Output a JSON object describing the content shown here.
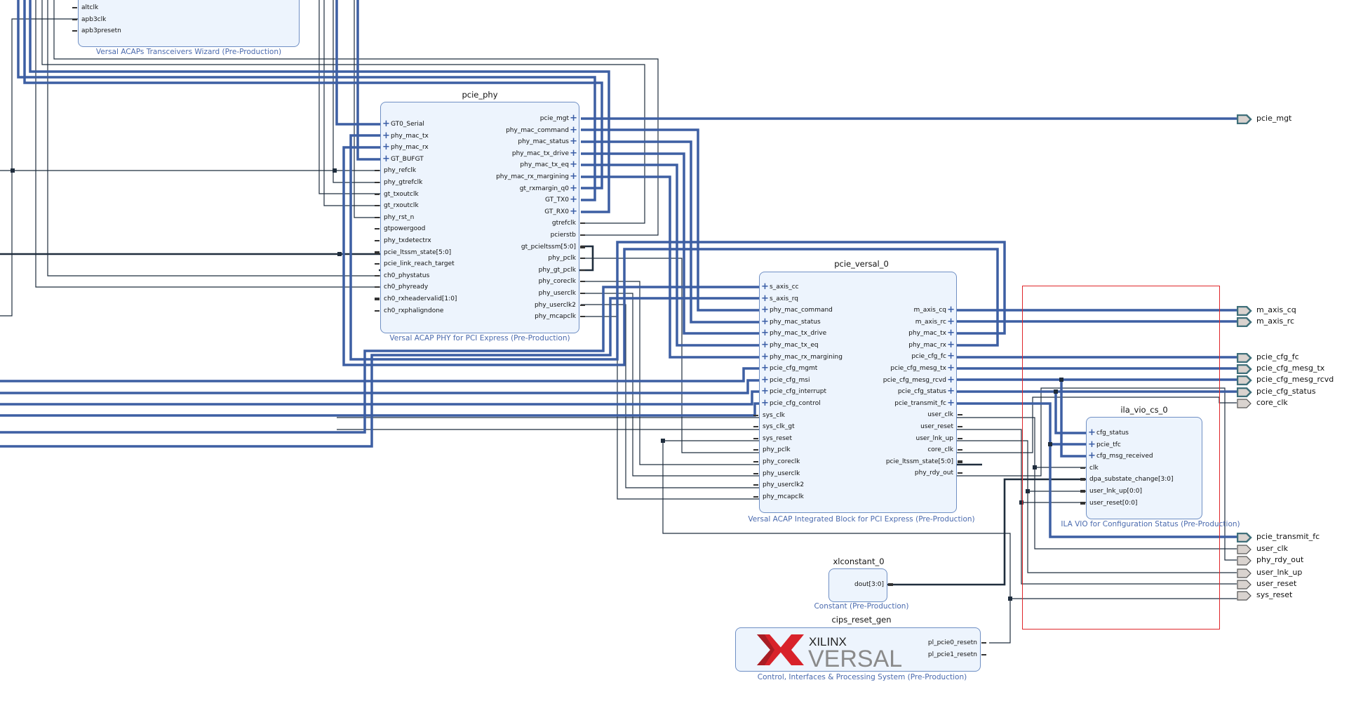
{
  "blocks": {
    "wizard": {
      "caption": "Versal ACAPs Transceivers Wizard (Pre-Production)",
      "left_ports": [
        {
          "name": "altclk",
          "kind": "pin"
        },
        {
          "name": "apb3clk",
          "kind": "pin"
        },
        {
          "name": "apb3presetn",
          "kind": "pin"
        }
      ]
    },
    "pcie_phy": {
      "title": "pcie_phy",
      "caption": "Versal ACAP PHY for PCI Express (Pre-Production)",
      "left_ports": [
        {
          "name": "GT0_Serial",
          "kind": "bus"
        },
        {
          "name": "phy_mac_tx",
          "kind": "bus"
        },
        {
          "name": "phy_mac_rx",
          "kind": "bus"
        },
        {
          "name": "GT_BUFGT",
          "kind": "bus"
        },
        {
          "name": "phy_refclk",
          "kind": "pin"
        },
        {
          "name": "phy_gtrefclk",
          "kind": "pin"
        },
        {
          "name": "gt_txoutclk",
          "kind": "pin"
        },
        {
          "name": "gt_rxoutclk",
          "kind": "pin"
        },
        {
          "name": "phy_rst_n",
          "kind": "pin"
        },
        {
          "name": "gtpowergood",
          "kind": "pin"
        },
        {
          "name": "phy_txdetectrx",
          "kind": "pin"
        },
        {
          "name": "pcie_ltssm_state[5:0]",
          "kind": "vec"
        },
        {
          "name": "pcie_link_reach_target",
          "kind": "pin"
        },
        {
          "name": "ch0_phystatus",
          "kind": "pin"
        },
        {
          "name": "ch0_phyready",
          "kind": "pin"
        },
        {
          "name": "ch0_rxheadervalid[1:0]",
          "kind": "vec"
        },
        {
          "name": "ch0_rxphaligndone",
          "kind": "pin"
        }
      ],
      "right_ports": [
        {
          "name": "pcie_mgt",
          "kind": "bus"
        },
        {
          "name": "phy_mac_command",
          "kind": "bus"
        },
        {
          "name": "phy_mac_status",
          "kind": "bus"
        },
        {
          "name": "phy_mac_tx_drive",
          "kind": "bus"
        },
        {
          "name": "phy_mac_tx_eq",
          "kind": "bus"
        },
        {
          "name": "phy_mac_rx_margining",
          "kind": "bus"
        },
        {
          "name": "gt_rxmargin_q0",
          "kind": "bus"
        },
        {
          "name": "GT_TX0",
          "kind": "bus"
        },
        {
          "name": "GT_RX0",
          "kind": "bus"
        },
        {
          "name": "gtrefclk",
          "kind": "pin"
        },
        {
          "name": "pcierstb",
          "kind": "pin"
        },
        {
          "name": "gt_pcieltssm[5:0]",
          "kind": "vec"
        },
        {
          "name": "phy_pclk",
          "kind": "pin"
        },
        {
          "name": "phy_gt_pclk",
          "kind": "pin"
        },
        {
          "name": "phy_coreclk",
          "kind": "pin"
        },
        {
          "name": "phy_userclk",
          "kind": "pin"
        },
        {
          "name": "phy_userclk2",
          "kind": "pin"
        },
        {
          "name": "phy_mcapclk",
          "kind": "pin"
        }
      ]
    },
    "pcie_versal_0": {
      "title": "pcie_versal_0",
      "caption": "Versal ACAP Integrated Block for PCI Express (Pre-Production)",
      "left_ports": [
        {
          "name": "s_axis_cc",
          "kind": "bus"
        },
        {
          "name": "s_axis_rq",
          "kind": "bus"
        },
        {
          "name": "phy_mac_command",
          "kind": "bus"
        },
        {
          "name": "phy_mac_status",
          "kind": "bus"
        },
        {
          "name": "phy_mac_tx_drive",
          "kind": "bus"
        },
        {
          "name": "phy_mac_tx_eq",
          "kind": "bus"
        },
        {
          "name": "phy_mac_rx_margining",
          "kind": "bus"
        },
        {
          "name": "pcie_cfg_mgmt",
          "kind": "bus"
        },
        {
          "name": "pcie_cfg_msi",
          "kind": "bus"
        },
        {
          "name": "pcie_cfg_interrupt",
          "kind": "bus"
        },
        {
          "name": "pcie_cfg_control",
          "kind": "bus"
        },
        {
          "name": "sys_clk",
          "kind": "pin"
        },
        {
          "name": "sys_clk_gt",
          "kind": "pin"
        },
        {
          "name": "sys_reset",
          "kind": "pin"
        },
        {
          "name": "phy_pclk",
          "kind": "pin"
        },
        {
          "name": "phy_coreclk",
          "kind": "pin"
        },
        {
          "name": "phy_userclk",
          "kind": "pin"
        },
        {
          "name": "phy_userclk2",
          "kind": "pin"
        },
        {
          "name": "phy_mcapclk",
          "kind": "pin"
        }
      ],
      "right_ports": [
        {
          "name": "m_axis_cq",
          "kind": "bus"
        },
        {
          "name": "m_axis_rc",
          "kind": "bus"
        },
        {
          "name": "phy_mac_tx",
          "kind": "bus"
        },
        {
          "name": "phy_mac_rx",
          "kind": "bus"
        },
        {
          "name": "pcie_cfg_fc",
          "kind": "bus"
        },
        {
          "name": "pcie_cfg_mesg_tx",
          "kind": "bus"
        },
        {
          "name": "pcie_cfg_mesg_rcvd",
          "kind": "bus"
        },
        {
          "name": "pcie_cfg_status",
          "kind": "bus"
        },
        {
          "name": "pcie_transmit_fc",
          "kind": "bus"
        },
        {
          "name": "user_clk",
          "kind": "pin"
        },
        {
          "name": "user_reset",
          "kind": "pin"
        },
        {
          "name": "user_lnk_up",
          "kind": "pin"
        },
        {
          "name": "core_clk",
          "kind": "pin"
        },
        {
          "name": "pcie_ltssm_state[5:0]",
          "kind": "vec"
        },
        {
          "name": "phy_rdy_out",
          "kind": "pin"
        }
      ]
    },
    "ila_vio_cs_0": {
      "title": "ila_vio_cs_0",
      "caption": "ILA VIO for Configuration Status (Pre-Production)",
      "left_ports": [
        {
          "name": "cfg_status",
          "kind": "bus"
        },
        {
          "name": "pcie_tfc",
          "kind": "bus"
        },
        {
          "name": "cfg_msg_received",
          "kind": "bus"
        },
        {
          "name": "clk",
          "kind": "pin"
        },
        {
          "name": "dpa_substate_change[3:0]",
          "kind": "vec"
        },
        {
          "name": "user_lnk_up[0:0]",
          "kind": "vec"
        },
        {
          "name": "user_reset[0:0]",
          "kind": "vec"
        }
      ]
    },
    "xlconstant_0": {
      "title": "xlconstant_0",
      "caption": "Constant (Pre-Production)",
      "right_ports": [
        {
          "name": "dout[3:0]",
          "kind": "vec"
        }
      ]
    },
    "cips_reset_gen": {
      "title": "cips_reset_gen",
      "caption": "Control, Interfaces & Processing System (Pre-Production)",
      "logo_brand": "XILINX",
      "logo_product": "VERSAL",
      "right_ports": [
        {
          "name": "pl_pcie0_resetn",
          "kind": "pin"
        },
        {
          "name": "pl_pcie1_resetn",
          "kind": "pin"
        }
      ]
    }
  },
  "external_ports": [
    {
      "name": "pcie_mgt",
      "kind": "bus"
    },
    {
      "name": "m_axis_cq",
      "kind": "bus"
    },
    {
      "name": "m_axis_rc",
      "kind": "bus"
    },
    {
      "name": "pcie_cfg_fc",
      "kind": "bus"
    },
    {
      "name": "pcie_cfg_mesg_tx",
      "kind": "bus"
    },
    {
      "name": "pcie_cfg_mesg_rcvd",
      "kind": "bus"
    },
    {
      "name": "pcie_cfg_status",
      "kind": "bus"
    },
    {
      "name": "core_clk",
      "kind": "pin"
    },
    {
      "name": "pcie_transmit_fc",
      "kind": "bus"
    },
    {
      "name": "user_clk",
      "kind": "pin"
    },
    {
      "name": "phy_rdy_out",
      "kind": "pin"
    },
    {
      "name": "user_lnk_up",
      "kind": "pin"
    },
    {
      "name": "user_reset",
      "kind": "pin"
    },
    {
      "name": "sys_reset",
      "kind": "pin"
    }
  ],
  "colors": {
    "bus_wire": "#3d5fa3",
    "net_wire": "#1f2d3d",
    "block_fill": "#edf4fd",
    "block_border": "#6f8fc4",
    "caption": "#4a6aae",
    "highlight_box": "#e0262a",
    "xilinx_red": "#d8222a"
  }
}
